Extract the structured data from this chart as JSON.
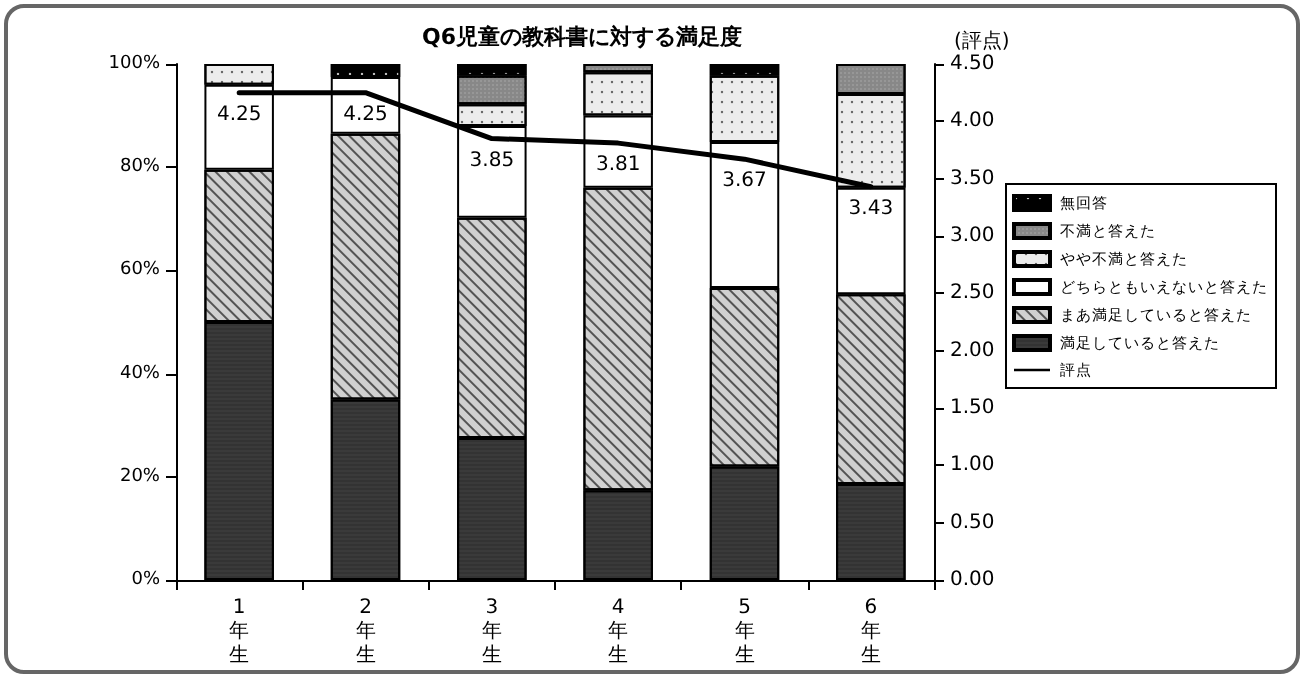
{
  "chart_data": {
    "type": "bar",
    "title": "Q6児童の教科書に対する満足度",
    "y2label": "(評点)",
    "categories": [
      "1年生",
      "2年生",
      "3年生",
      "4年生",
      "5年生",
      "6年生"
    ],
    "stacked": true,
    "legend": "right",
    "grid": false,
    "ylim": [
      0,
      100
    ],
    "yticks": [
      {
        "value": 0,
        "label": "0%"
      },
      {
        "value": 20,
        "label": "20%"
      },
      {
        "value": 40,
        "label": "40%"
      },
      {
        "value": 60,
        "label": "60%"
      },
      {
        "value": 80,
        "label": "80%"
      },
      {
        "value": 100,
        "label": "100%"
      }
    ],
    "y2lim": [
      0,
      4.5
    ],
    "y2ticks": [
      {
        "value": 0,
        "label": "0.00"
      },
      {
        "value": 0.5,
        "label": "0.50"
      },
      {
        "value": 1,
        "label": "1.00"
      },
      {
        "value": 1.5,
        "label": "1.50"
      },
      {
        "value": 2,
        "label": "2.00"
      },
      {
        "value": 2.5,
        "label": "2.50"
      },
      {
        "value": 3,
        "label": "3.00"
      },
      {
        "value": 3.5,
        "label": "3.50"
      },
      {
        "value": 4,
        "label": "4.00"
      },
      {
        "value": 4.5,
        "label": "4.50"
      }
    ],
    "series": [
      {
        "name": "満足していると答えた",
        "color": "#3a3a3a",
        "values": [
          50,
          35,
          27.5,
          17.4,
          22,
          18.6
        ]
      },
      {
        "name": "まあ満足していると答えた",
        "color": "#d0d0d0",
        "values": [
          29.5,
          51.5,
          42.7,
          58.6,
          34.6,
          36.8
        ]
      },
      {
        "name": "どちらともいえないと答えた",
        "color": "#ffffff",
        "values": [
          16.5,
          11,
          17.8,
          14,
          28.3,
          20.6
        ]
      },
      {
        "name": "やや不満と答えた",
        "color": "#ececec",
        "values": [
          4,
          null,
          4.2,
          8.4,
          12.8,
          18.2
        ]
      },
      {
        "name": "不満と答えた",
        "color": "#888888",
        "values": [
          null,
          null,
          5.5,
          1.6,
          null,
          5.8
        ]
      },
      {
        "name": "無回答",
        "color": "#000000",
        "values": [
          null,
          2.5,
          2.3,
          null,
          2.3,
          null
        ]
      },
      {
        "name": "評点",
        "type": "line",
        "axis": "y2",
        "color": "#000000",
        "marker": "none",
        "data_labels": true,
        "values": [
          4.25,
          4.25,
          3.85,
          3.81,
          3.67,
          3.43
        ]
      }
    ]
  }
}
